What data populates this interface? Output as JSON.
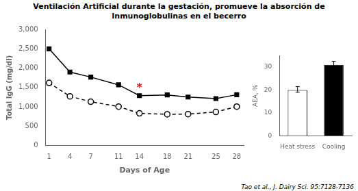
{
  "chart_data": [
    {
      "type": "line",
      "title": [
        "Ventilación Artificial durante la gestación, promueve la absorción de",
        "Inmunoglobulinas en el becerro"
      ],
      "caption": "Tao et al., J. Dairy Sci. 95:7128-7136",
      "xlabel": "Days of Age",
      "ylabel": "Total IgG (mg/dl)",
      "x": [
        1,
        4,
        7,
        11,
        14,
        18,
        21,
        25,
        28
      ],
      "series": [
        {
          "color": "black",
          "marker": "square",
          "line_style": "solid",
          "values": [
            2500,
            1900,
            1770,
            1570,
            1290,
            1310,
            1255,
            1215,
            1315
          ]
        },
        {
          "color": "black",
          "marker": "open_circle",
          "line_style": "dashed",
          "values": [
            1620,
            1275,
            1135,
            1010,
            835,
            810,
            815,
            870,
            1010
          ]
        }
      ],
      "xlim": [
        0.5,
        29
      ],
      "xticks": [
        1,
        4,
        7,
        11,
        14,
        18,
        21,
        25,
        28
      ],
      "ylim": [
        0,
        3000
      ],
      "yticks": [
        0,
        500,
        {
          "value": 1000,
          "label": "1,000"
        },
        {
          "value": 1500,
          "label": "1,500"
        },
        {
          "value": 2000,
          "label": "2,000"
        },
        {
          "value": 2500,
          "label": "2,500"
        },
        {
          "value": 3000,
          "label": "3,000"
        }
      ],
      "grid": false,
      "annotations": [
        {
          "text": "*",
          "x": 14,
          "y": 1480,
          "color": "red"
        }
      ]
    },
    {
      "type": "bar",
      "categories": [
        "Heat stress",
        "Cooling"
      ],
      "values": [
        20,
        31
      ],
      "colors": [
        "white",
        "black"
      ],
      "error_low": [
        1,
        1
      ],
      "error_high": [
        1.5,
        1.5
      ],
      "ylabel": "AEA, %",
      "ylim": [
        0,
        35
      ],
      "yticks": [
        0,
        10,
        20,
        30
      ],
      "grid": false
    }
  ]
}
